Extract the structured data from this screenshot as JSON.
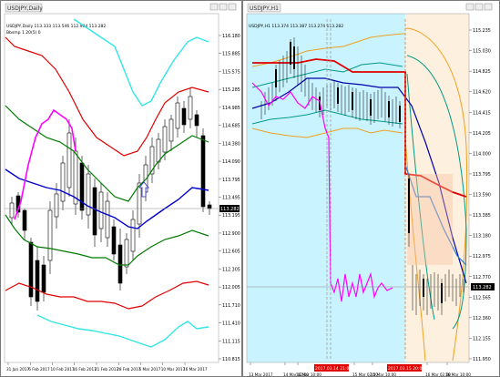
{
  "left_chart": {
    "symbol_tab": "USDJPY,Daily",
    "header_line": "USDJPY,Daily  113.333 113.546 112.904 113.282",
    "indicator_line": "Bbsmp 1 20(5) 0",
    "price_labels": [
      "116.180",
      "115.885",
      "115.575",
      "115.285",
      "114.985",
      "114.685",
      "114.380",
      "114.090",
      "113.795",
      "113.495",
      "113.195",
      "112.900",
      "112.605",
      "112.305",
      "112.005",
      "111.710",
      "111.410",
      "111.115",
      "110.815"
    ],
    "current_price": "113.282",
    "date_labels": [
      "31 Jan 2017",
      "6 Feb 2017",
      "10 Feb 2017",
      "16 Feb 2017",
      "21 Feb 2017",
      "28 Feb 2017",
      "6 Mar 2017",
      "10 Mar 2017",
      "16 Mar 2017"
    ],
    "colors": {
      "bands3": "#e00000",
      "bands2": "#007a00",
      "mid": "#0000cc",
      "ma": "#ff00ff",
      "cyan": "#33e6e6"
    }
  },
  "right_chart": {
    "symbol_tab": "USDJPY,H1",
    "header_line": "USDJPY,H1  113.374 113.387 113.274 113.282",
    "price_labels": [
      "115.235",
      "115.030",
      "114.825",
      "114.620",
      "114.415",
      "114.205",
      "114.000",
      "113.795",
      "113.590",
      "113.385",
      "113.180",
      "112.975",
      "112.770",
      "112.565",
      "112.360",
      "112.155",
      "111.950"
    ],
    "current_price": "113.282",
    "date_labels": [
      "13 Mar 2017",
      "14 Mar 02:00",
      "14 Mar 10:00",
      "15 Mar 02:00",
      "15 Mar 10:00",
      "16 Mar 02:00",
      "16 Mar 10:00"
    ],
    "marker_labels": [
      "2017.03.14 21:00",
      "2017.03.15 20:00"
    ],
    "colors": {
      "bg_left": "#c9f4ff",
      "bg_right": "#fdf0de",
      "orange": "#f0a020",
      "red": "#e00000",
      "blue": "#0000aa",
      "magenta": "#ff00ff"
    }
  }
}
